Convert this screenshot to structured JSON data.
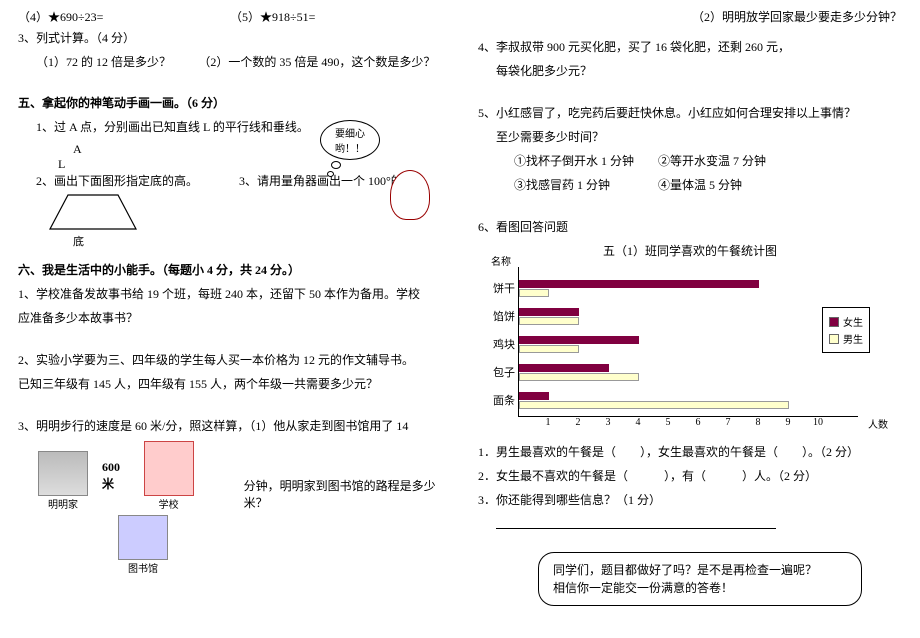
{
  "left": {
    "q4": "（4）★690÷23=",
    "q5": "（5）★918÷51=",
    "q3header": "3、列式计算。（4 分）",
    "q3a": "（1）72 的 12 倍是多少？",
    "q3b": "（2）一个数的 35 倍是 490，这个数是多少？",
    "sec5": "五、拿起你的神笔动手画一画。（6 分）",
    "s5_1": "1、过 A 点，分别画出已知直线 L 的平行线和垂线。",
    "a_label": "A",
    "l_label": "L",
    "s5_2": "2、画出下面图形指定底的高。",
    "s5_3": "3、请用量角器画出一个 100°的角。",
    "di": "底",
    "speech": "要细心哟！！",
    "sec6": "六、我是生活中的小能手。（每题小 4 分，共 24 分。）",
    "s6_1a": "1、学校准备发故事书给 19 个班，每班 240 本，还留下 50 本作为备用。学校",
    "s6_1b": "应准备多少本故事书？",
    "s6_2a": "2、实验小学要为三、四年级的学生每人买一本价格为 12 元的作文辅导书。",
    "s6_2b": "已知三年级有 145 人，四年级有 155 人，两个年级一共需要多少元？",
    "s6_3a": "3、明明步行的速度是 60 米/分，照这样算，（1）他从家走到图书馆用了 14",
    "s6_3b": "分钟，明明家到图书馆的路程是多少米？",
    "dist": "600米",
    "home_label": "明明家",
    "school_label": "学校",
    "library_label": "图书馆"
  },
  "right": {
    "s3_2": "（2）明明放学回家最少要走多少分钟？",
    "s4a": "4、李叔叔带 900 元买化肥，买了 16 袋化肥，还剩 260 元，",
    "s4b": "每袋化肥多少元？",
    "s5a": "5、小红感冒了，吃完药后要赶快休息。小红应如何合理安排以上事情？",
    "s5b": "至少需要多少时间？",
    "s5c": "①找杯子倒开水 1 分钟　　②等开水变温 7 分钟",
    "s5d": "③找感冒药 1 分钟　　　　④量体温 5 分钟",
    "s6": "6、看图回答问题",
    "chart": {
      "title": "五（1）班同学喜欢的午餐统计图",
      "ylabel": "名称",
      "xlabel": "人数",
      "categories": [
        "饼干",
        "馅饼",
        "鸡块",
        "包子",
        "面条"
      ],
      "girl": [
        8,
        2,
        4,
        3,
        1
      ],
      "boy": [
        1,
        2,
        2,
        4,
        9
      ],
      "xmax": 10,
      "xticks": [
        1,
        2,
        3,
        4,
        5,
        6,
        7,
        8,
        9,
        10
      ],
      "colors": {
        "girl": "#800040",
        "boy": "#ffffcc",
        "grid": "#d7b5c9",
        "axis": "#000000"
      },
      "legend": {
        "girl": "女生",
        "boy": "男生"
      }
    },
    "q1": "1．男生最喜欢的午餐是（　　），女生最喜欢的午餐是（　　）。（2 分）",
    "q2": "2．女生最不喜欢的午餐是（　　　），有（　　　）人。（2 分）",
    "q3": "3．你还能得到哪些信息？（1 分）",
    "callout1": "同学们，题目都做好了吗？是不是再检查一遍呢？",
    "callout2": "相信你一定能交一份满意的答卷！"
  }
}
